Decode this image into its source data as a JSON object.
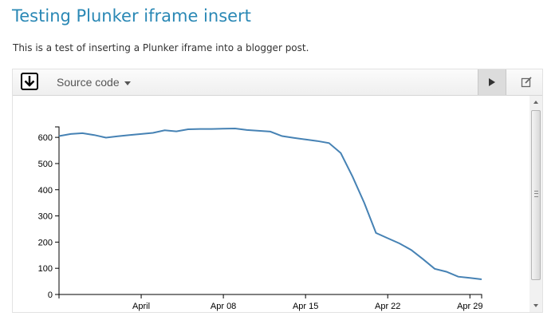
{
  "post": {
    "title": "Testing Plunker iframe insert",
    "body": "This is a test of inserting a Plunker iframe into a blogger post."
  },
  "toolbar": {
    "download_icon": "download-arrow-icon",
    "source_label": "Source code",
    "run_icon": "play-icon",
    "edit_icon": "edit-icon"
  },
  "colors": {
    "title": "#2a88b5",
    "line": "#4682b4",
    "accent_run": "#dcdcdc"
  },
  "chart_data": {
    "type": "line",
    "title": "",
    "xlabel": "",
    "ylabel": "",
    "x_type": "date",
    "xlim": [
      "2013-03-25",
      "2013-04-30"
    ],
    "ylim": [
      0,
      640
    ],
    "x_ticks": [
      {
        "date": "2013-04-01",
        "label": "April"
      },
      {
        "date": "2013-04-08",
        "label": "Apr 08"
      },
      {
        "date": "2013-04-15",
        "label": "Apr 15"
      },
      {
        "date": "2013-04-22",
        "label": "Apr 22"
      },
      {
        "date": "2013-04-29",
        "label": "Apr 29"
      }
    ],
    "y_ticks": [
      0,
      100,
      200,
      300,
      400,
      500,
      600
    ],
    "grid": false,
    "legend": "none",
    "series": [
      {
        "x": [
          "2013-03-25",
          "2013-03-26",
          "2013-03-27",
          "2013-03-28",
          "2013-03-29",
          "2013-03-30",
          "2013-03-31",
          "2013-04-01",
          "2013-04-02",
          "2013-04-03",
          "2013-04-04",
          "2013-04-05",
          "2013-04-06",
          "2013-04-07",
          "2013-04-08",
          "2013-04-09",
          "2013-04-10",
          "2013-04-11",
          "2013-04-12",
          "2013-04-13",
          "2013-04-14",
          "2013-04-15",
          "2013-04-16",
          "2013-04-17",
          "2013-04-18",
          "2013-04-19",
          "2013-04-20",
          "2013-04-21",
          "2013-04-22",
          "2013-04-23",
          "2013-04-24",
          "2013-04-25",
          "2013-04-26",
          "2013-04-27",
          "2013-04-28",
          "2013-04-29",
          "2013-04-30"
        ],
        "y": [
          605,
          613,
          616,
          609,
          599,
          604,
          609,
          613,
          617,
          627,
          623,
          631,
          632,
          632,
          633,
          634,
          628,
          625,
          622,
          605,
          598,
          592,
          586,
          578,
          540,
          450,
          350,
          235,
          215,
          195,
          170,
          135,
          98,
          87,
          68,
          63,
          58
        ]
      }
    ]
  }
}
